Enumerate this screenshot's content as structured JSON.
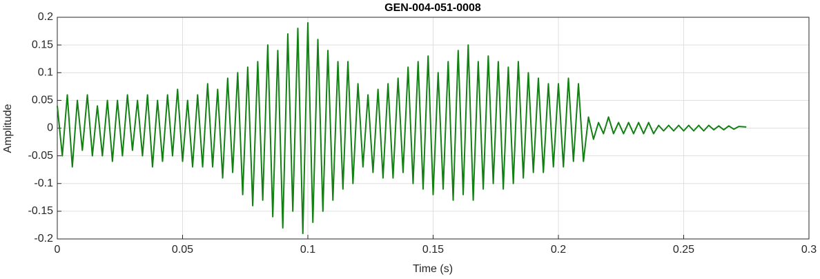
{
  "chart_data": {
    "type": "line",
    "title": "GEN-004-051-0008",
    "xlabel": "Time (s)",
    "ylabel": "Amplitude",
    "xlim": [
      0,
      0.3
    ],
    "ylim": [
      -0.2,
      0.2
    ],
    "xticks": [
      0,
      0.05,
      0.1,
      0.15,
      0.2,
      0.25,
      0.3
    ],
    "yticks": [
      -0.2,
      -0.15,
      -0.1,
      -0.05,
      0,
      0.05,
      0.1,
      0.15,
      0.2
    ],
    "grid": true,
    "x": [
      0,
      0.002,
      0.004,
      0.006,
      0.008,
      0.01,
      0.012,
      0.014,
      0.016,
      0.018,
      0.02,
      0.022,
      0.024,
      0.026,
      0.028,
      0.03,
      0.032,
      0.034,
      0.036,
      0.038,
      0.04,
      0.042,
      0.044,
      0.046,
      0.048,
      0.05,
      0.052,
      0.054,
      0.056,
      0.058,
      0.06,
      0.062,
      0.064,
      0.066,
      0.068,
      0.07,
      0.072,
      0.074,
      0.076,
      0.078,
      0.08,
      0.082,
      0.084,
      0.086,
      0.088,
      0.09,
      0.092,
      0.094,
      0.096,
      0.098,
      0.1,
      0.102,
      0.104,
      0.106,
      0.108,
      0.11,
      0.112,
      0.114,
      0.116,
      0.118,
      0.12,
      0.122,
      0.124,
      0.126,
      0.128,
      0.13,
      0.132,
      0.134,
      0.136,
      0.138,
      0.14,
      0.142,
      0.144,
      0.146,
      0.148,
      0.15,
      0.152,
      0.154,
      0.156,
      0.158,
      0.16,
      0.162,
      0.164,
      0.166,
      0.168,
      0.17,
      0.172,
      0.174,
      0.176,
      0.178,
      0.18,
      0.182,
      0.184,
      0.186,
      0.188,
      0.19,
      0.192,
      0.194,
      0.196,
      0.198,
      0.2,
      0.202,
      0.204,
      0.206,
      0.208,
      0.21,
      0.212,
      0.214,
      0.216,
      0.218,
      0.22,
      0.222,
      0.224,
      0.226,
      0.228,
      0.23,
      0.232,
      0.234,
      0.236,
      0.238,
      0.24,
      0.242,
      0.244,
      0.246,
      0.248,
      0.25,
      0.252,
      0.254,
      0.256,
      0.258,
      0.26,
      0.262,
      0.264,
      0.266,
      0.268,
      0.27,
      0.272,
      0.275
    ],
    "series": [
      {
        "color": "#128012",
        "values": [
          0.04,
          -0.05,
          0.06,
          -0.07,
          0.05,
          -0.04,
          0.06,
          -0.05,
          0.04,
          -0.05,
          0.05,
          -0.06,
          0.05,
          -0.05,
          0.06,
          -0.04,
          0.05,
          -0.05,
          0.06,
          -0.07,
          0.05,
          -0.06,
          0.06,
          -0.05,
          0.07,
          -0.06,
          0.05,
          -0.07,
          0.06,
          -0.07,
          0.08,
          -0.07,
          0.07,
          -0.09,
          0.09,
          -0.08,
          0.1,
          -0.12,
          0.11,
          -0.14,
          0.12,
          -0.13,
          0.15,
          -0.16,
          0.14,
          -0.18,
          0.17,
          -0.15,
          0.18,
          -0.19,
          0.19,
          -0.17,
          0.16,
          -0.15,
          0.14,
          -0.13,
          0.12,
          -0.11,
          0.12,
          -0.1,
          0.08,
          -0.07,
          0.06,
          -0.08,
          0.07,
          -0.09,
          0.08,
          -0.09,
          0.09,
          -0.08,
          0.11,
          -0.1,
          0.12,
          -0.11,
          0.13,
          -0.12,
          0.1,
          -0.11,
          0.12,
          -0.13,
          0.14,
          -0.12,
          0.15,
          -0.13,
          0.12,
          -0.11,
          0.13,
          -0.1,
          0.12,
          -0.11,
          0.11,
          -0.1,
          0.12,
          -0.09,
          0.1,
          -0.08,
          0.09,
          -0.08,
          0.08,
          -0.07,
          0.08,
          -0.07,
          0.09,
          -0.06,
          0.08,
          -0.06,
          0.02,
          -0.02,
          0.01,
          -0.01,
          0.02,
          -0.01,
          0.01,
          -0.01,
          0.01,
          -0.01,
          0.01,
          -0.01,
          0.01,
          -0.01,
          0.005,
          -0.005,
          0.005,
          -0.005,
          0.005,
          -0.005,
          0.005,
          -0.005,
          0.005,
          -0.005,
          0.005,
          -0.003,
          0.004,
          -0.003,
          0.004,
          -0.002,
          0.003,
          0.002
        ]
      }
    ]
  }
}
